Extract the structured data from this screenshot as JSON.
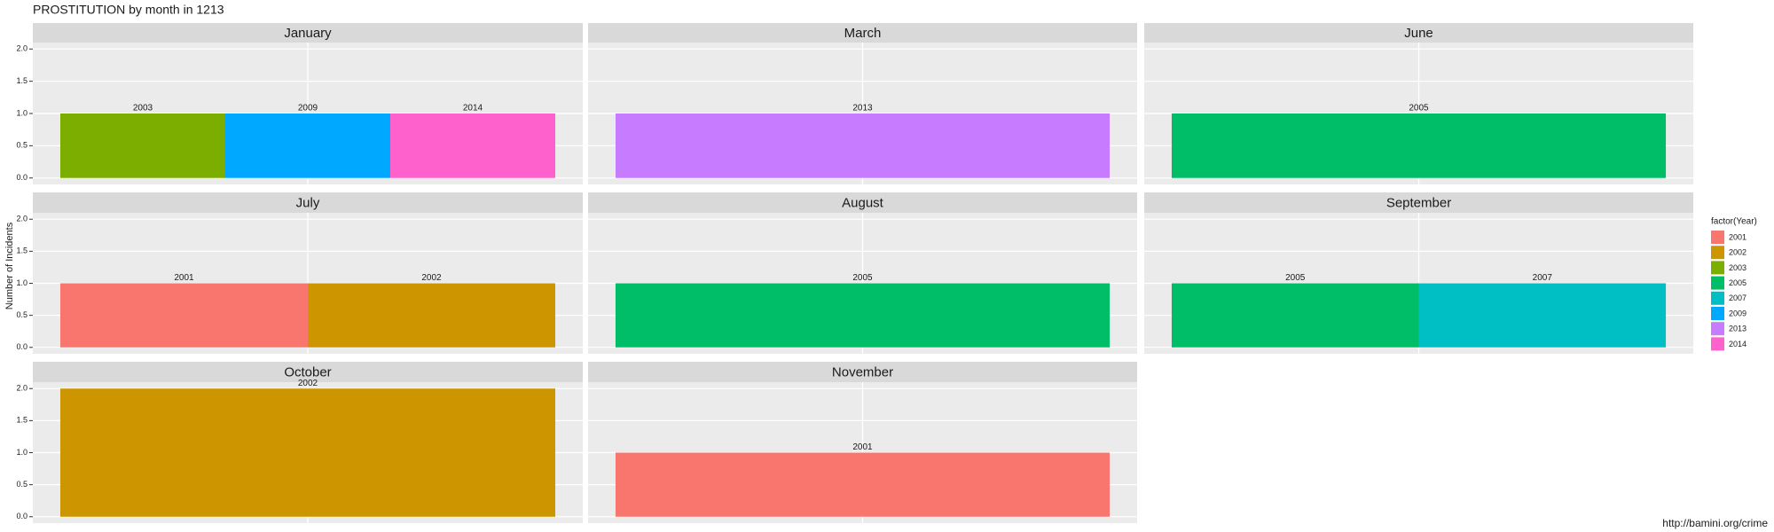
{
  "chart_data": {
    "type": "bar",
    "title": "PROSTITUTION by month in 1213",
    "y_label": "Number of Incidents",
    "caption": "http://bamini.org/crime",
    "legend_title": "factor(Year)",
    "ylim": [
      -0.1,
      2.1
    ],
    "yticks": [
      {
        "value": 0,
        "label": "0.0"
      },
      {
        "value": 0.5,
        "label": "0.5"
      },
      {
        "value": 1,
        "label": "1.0"
      },
      {
        "value": 1.5,
        "label": "1.5"
      },
      {
        "value": 2,
        "label": "2.0"
      }
    ],
    "grid": true,
    "series": [
      {
        "name": "2001",
        "color": "#F8766D"
      },
      {
        "name": "2002",
        "color": "#CD9600"
      },
      {
        "name": "2003",
        "color": "#7CAE00"
      },
      {
        "name": "2005",
        "color": "#00BE67"
      },
      {
        "name": "2007",
        "color": "#00BFC4"
      },
      {
        "name": "2009",
        "color": "#00A9FF"
      },
      {
        "name": "2013",
        "color": "#C77CFF"
      },
      {
        "name": "2014",
        "color": "#FF61CC"
      }
    ],
    "facets": [
      {
        "title": "January",
        "categories": [
          "2003",
          "2009",
          "2014"
        ],
        "values": [
          1,
          1,
          1
        ]
      },
      {
        "title": "March",
        "categories": [
          "2013"
        ],
        "values": [
          1
        ]
      },
      {
        "title": "June",
        "categories": [
          "2005"
        ],
        "values": [
          1
        ]
      },
      {
        "title": "July",
        "categories": [
          "2001",
          "2002"
        ],
        "values": [
          1,
          1
        ]
      },
      {
        "title": "August",
        "categories": [
          "2005"
        ],
        "values": [
          1
        ]
      },
      {
        "title": "September",
        "categories": [
          "2005",
          "2007"
        ],
        "values": [
          1,
          1
        ]
      },
      {
        "title": "October",
        "categories": [
          "2002"
        ],
        "values": [
          2
        ]
      },
      {
        "title": "November",
        "categories": [
          "2001"
        ],
        "values": [
          1
        ]
      }
    ]
  }
}
